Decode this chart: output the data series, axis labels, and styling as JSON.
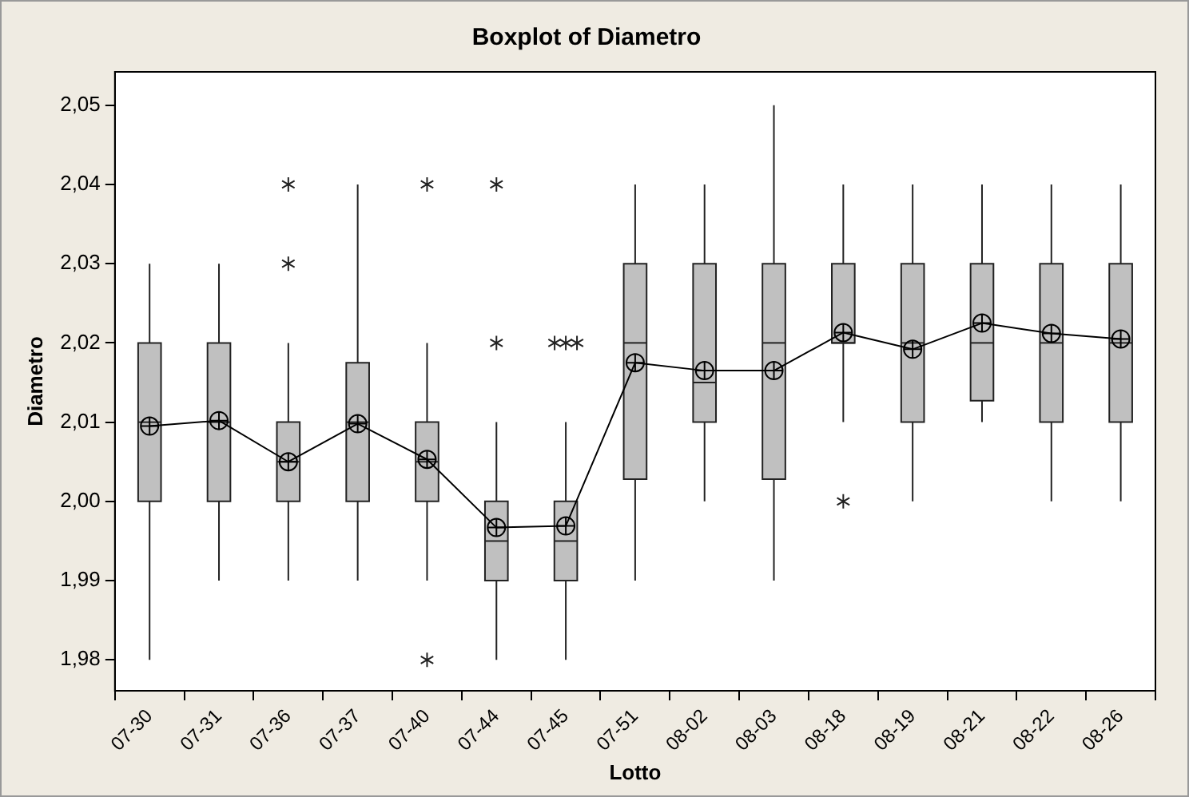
{
  "chart_data": {
    "type": "box",
    "title": "Boxplot of Diametro",
    "xlabel": "Lotto",
    "ylabel": "Diametro",
    "categories": [
      "07-30",
      "07-31",
      "07-36",
      "07-37",
      "07-40",
      "07-44",
      "07-45",
      "07-51",
      "08-02",
      "08-03",
      "08-18",
      "08-19",
      "08-21",
      "08-22",
      "08-26"
    ],
    "boxes": [
      {
        "low": 1.98,
        "q1": 2.0,
        "median": 2.01,
        "q3": 2.02,
        "high": 2.03
      },
      {
        "low": 1.99,
        "q1": 2.0,
        "median": 2.01,
        "q3": 2.02,
        "high": 2.03
      },
      {
        "low": 1.99,
        "q1": 2.0,
        "median": 2.005,
        "q3": 2.01,
        "high": 2.02,
        "outliers": [
          2.03,
          2.04
        ]
      },
      {
        "low": 1.99,
        "q1": 2.0,
        "median": 2.01,
        "q3": 2.0175,
        "high": 2.04
      },
      {
        "low": 1.99,
        "q1": 2.0,
        "median": 2.005,
        "q3": 2.01,
        "high": 2.02,
        "outliers": [
          2.04,
          1.98
        ]
      },
      {
        "low": 1.98,
        "q1": 1.99,
        "median": 1.995,
        "q3": 2.0,
        "high": 2.01,
        "outliers": [
          2.02,
          2.04
        ]
      },
      {
        "low": 1.98,
        "q1": 1.99,
        "median": 1.995,
        "q3": 2.0,
        "high": 2.01,
        "outliers": [
          2.02,
          2.02,
          2.02
        ]
      },
      {
        "low": 1.99,
        "q1": 2.0028,
        "median": 2.02,
        "q3": 2.03,
        "high": 2.04
      },
      {
        "low": 2.0,
        "q1": 2.01,
        "median": 2.015,
        "q3": 2.03,
        "high": 2.04
      },
      {
        "low": 1.99,
        "q1": 2.0028,
        "median": 2.02,
        "q3": 2.03,
        "high": 2.05
      },
      {
        "low": 2.01,
        "q1": 2.02,
        "median": 2.02,
        "q3": 2.03,
        "high": 2.04,
        "outliers": [
          2.0
        ]
      },
      {
        "low": 2.0,
        "q1": 2.01,
        "median": 2.02,
        "q3": 2.03,
        "high": 2.04
      },
      {
        "low": 2.01,
        "q1": 2.0127,
        "median": 2.02,
        "q3": 2.03,
        "high": 2.04
      },
      {
        "low": 2.0,
        "q1": 2.01,
        "median": 2.02,
        "q3": 2.03,
        "high": 2.04
      },
      {
        "low": 2.0,
        "q1": 2.01,
        "median": 2.02,
        "q3": 2.03,
        "high": 2.04
      }
    ],
    "color": "#c0c0c0",
    "series": [
      {
        "type": "line",
        "color": "#000000",
        "marker": "circle",
        "values": [
          2.0095,
          2.0102,
          2.005,
          2.0098,
          2.0053,
          1.9967,
          1.9969,
          2.0175,
          2.0165,
          2.0165,
          2.0213,
          2.0192,
          2.0225,
          2.0212,
          2.0205
        ]
      }
    ],
    "ylim": [
      1.9761,
      2.0542
    ],
    "yticks": [
      {
        "value": 1.98,
        "label": "1,98"
      },
      {
        "value": 1.99,
        "label": "1,99"
      },
      {
        "value": 2.0,
        "label": "2,00"
      },
      {
        "value": 2.01,
        "label": "2,01"
      },
      {
        "value": 2.02,
        "label": "2,02"
      },
      {
        "value": 2.03,
        "label": "2,03"
      },
      {
        "value": 2.04,
        "label": "2,04"
      },
      {
        "value": 2.05,
        "label": "2,05"
      }
    ],
    "grid": false,
    "legend": false
  }
}
